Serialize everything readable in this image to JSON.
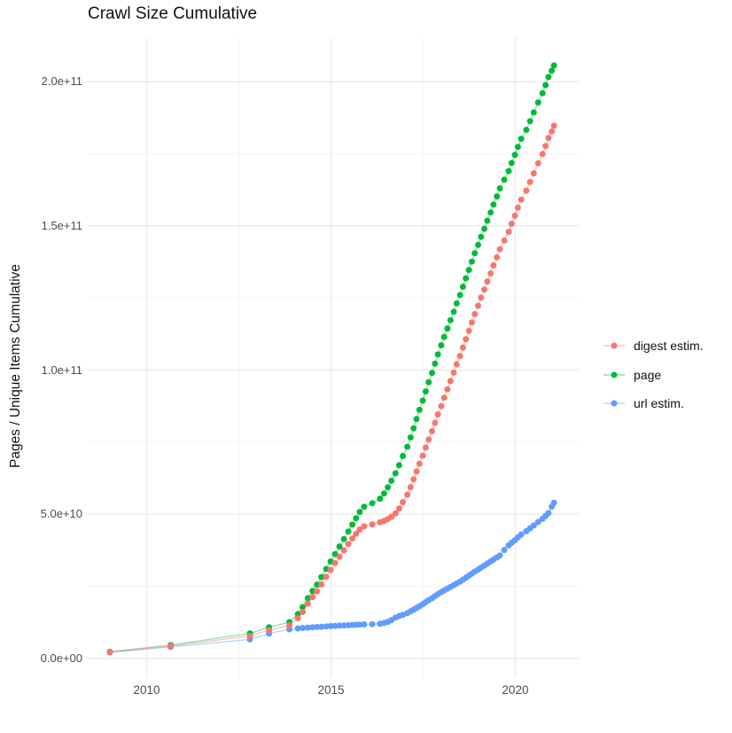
{
  "chart_data": {
    "type": "line",
    "title": "Crawl Size Cumulative",
    "ylabel": "Pages / Unique Items Cumulative",
    "xlabel": "",
    "grid": "on",
    "legend_position": "right-center",
    "x_domain": [
      2008.4,
      2021.72
    ],
    "y_domain_e9": [
      -6.8,
      215.1
    ],
    "x_ticks": [
      {
        "value": 2010,
        "label": "2010"
      },
      {
        "value": 2015,
        "label": "2015"
      },
      {
        "value": 2020,
        "label": "2020"
      }
    ],
    "y_ticks": [
      {
        "value_e9": 0,
        "label": "0.0e+00"
      },
      {
        "value_e9": 50,
        "label": "5.0e+10"
      },
      {
        "value_e9": 100,
        "label": "1.0e+11"
      },
      {
        "value_e9": 150,
        "label": "1.5e+11"
      },
      {
        "value_e9": 200,
        "label": "2.0e+11"
      }
    ],
    "x_minor_ticks": [
      2012.5,
      2017.5
    ],
    "y_minor_ticks_e9": [
      25,
      75,
      125,
      175
    ],
    "x_years": [
      2009.0,
      2010.65,
      2012.8,
      2013.32,
      2013.87,
      2014.1,
      2014.23,
      2014.37,
      2014.5,
      2014.62,
      2014.74,
      2014.87,
      2014.99,
      2015.11,
      2015.23,
      2015.35,
      2015.47,
      2015.58,
      2015.68,
      2015.78,
      2015.9,
      2016.12,
      2016.33,
      2016.44,
      2016.54,
      2016.64,
      2016.75,
      2016.85,
      2016.95,
      2017.07,
      2017.16,
      2017.24,
      2017.32,
      2017.4,
      2017.49,
      2017.57,
      2017.65,
      2017.74,
      2017.82,
      2017.9,
      2017.99,
      2018.07,
      2018.16,
      2018.24,
      2018.33,
      2018.41,
      2018.5,
      2018.58,
      2018.66,
      2018.74,
      2018.82,
      2018.9,
      2018.99,
      2019.07,
      2019.16,
      2019.24,
      2019.33,
      2019.41,
      2019.5,
      2019.58,
      2019.7,
      2019.82,
      2019.9,
      2019.99,
      2020.07,
      2020.16,
      2020.3,
      2020.4,
      2020.5,
      2020.62,
      2020.74,
      2020.82,
      2020.9,
      2020.99,
      2021.05
    ],
    "series": [
      {
        "name": "digest estim.",
        "color": "#F8766D",
        "values_e9": [
          2.2,
          4.3,
          7.8,
          9.8,
          11.4,
          13.9,
          16.1,
          19.0,
          21.3,
          23.3,
          25.7,
          28.3,
          30.7,
          33.1,
          35.3,
          37.5,
          39.7,
          41.6,
          43.2,
          44.7,
          45.8,
          46.5,
          47.2,
          47.7,
          48.3,
          49.1,
          50.3,
          52.0,
          54.2,
          56.8,
          59.4,
          62.1,
          64.8,
          67.5,
          70.3,
          73.1,
          75.9,
          78.8,
          81.7,
          84.6,
          87.5,
          90.4,
          93.3,
          96.2,
          99.1,
          102.0,
          104.9,
          107.8,
          110.7,
          113.6,
          116.5,
          119.4,
          122.3,
          125.1,
          127.9,
          130.7,
          133.5,
          136.3,
          139.1,
          141.9,
          144.9,
          147.9,
          150.7,
          153.5,
          156.3,
          159.1,
          162.2,
          165.2,
          168.2,
          171.7,
          174.9,
          177.7,
          180.5,
          182.7,
          184.7
        ]
      },
      {
        "name": "page",
        "color": "#00BA38",
        "values_e9": [
          2.3,
          4.6,
          8.7,
          10.8,
          12.6,
          15.4,
          17.8,
          20.9,
          23.4,
          25.6,
          28.2,
          31.0,
          33.6,
          36.2,
          38.8,
          41.4,
          44.0,
          46.4,
          48.6,
          50.8,
          52.6,
          53.8,
          55.4,
          57.2,
          59.3,
          61.6,
          64.2,
          67.0,
          70.2,
          73.4,
          76.6,
          79.8,
          83.0,
          86.2,
          89.4,
          92.6,
          95.8,
          99.0,
          102.2,
          105.4,
          108.6,
          111.5,
          114.4,
          117.3,
          120.2,
          123.1,
          126.0,
          128.9,
          131.8,
          134.7,
          137.6,
          140.5,
          143.4,
          146.2,
          149.0,
          151.8,
          154.6,
          157.4,
          160.2,
          163.0,
          166.0,
          169.0,
          171.8,
          174.6,
          177.4,
          180.2,
          183.3,
          186.3,
          189.3,
          192.8,
          196.0,
          198.8,
          201.6,
          203.8,
          205.6
        ]
      },
      {
        "name": "url estim.",
        "color": "#619CFF",
        "values_e9": [
          2.1,
          4.0,
          6.6,
          8.6,
          10.1,
          10.4,
          10.55,
          10.7,
          10.8,
          10.9,
          11.0,
          11.1,
          11.2,
          11.3,
          11.38,
          11.45,
          11.52,
          11.6,
          11.67,
          11.74,
          11.8,
          11.9,
          12.0,
          12.3,
          12.7,
          13.3,
          14.2,
          14.7,
          15.1,
          15.7,
          16.3,
          16.9,
          17.5,
          18.1,
          18.8,
          19.5,
          20.2,
          20.9,
          21.6,
          22.3,
          23.0,
          23.6,
          24.2,
          24.8,
          25.4,
          26.0,
          26.6,
          27.3,
          28.0,
          28.7,
          29.4,
          30.1,
          30.8,
          31.5,
          32.2,
          32.9,
          33.6,
          34.3,
          35.0,
          35.7,
          37.6,
          39.2,
          40.1,
          41.0,
          42.0,
          43.0,
          44.1,
          45.1,
          46.1,
          47.3,
          48.4,
          49.4,
          50.4,
          52.6,
          54.0
        ]
      }
    ],
    "draw_order": [
      "url estim.",
      "page",
      "digest estim."
    ]
  },
  "style_colors": {
    "background": "#FFFFFF",
    "grid_major": "#E8E8E8",
    "grid_minor": "#F3F3F3",
    "axis_text": "#4D4D4D",
    "text": "#111111"
  }
}
